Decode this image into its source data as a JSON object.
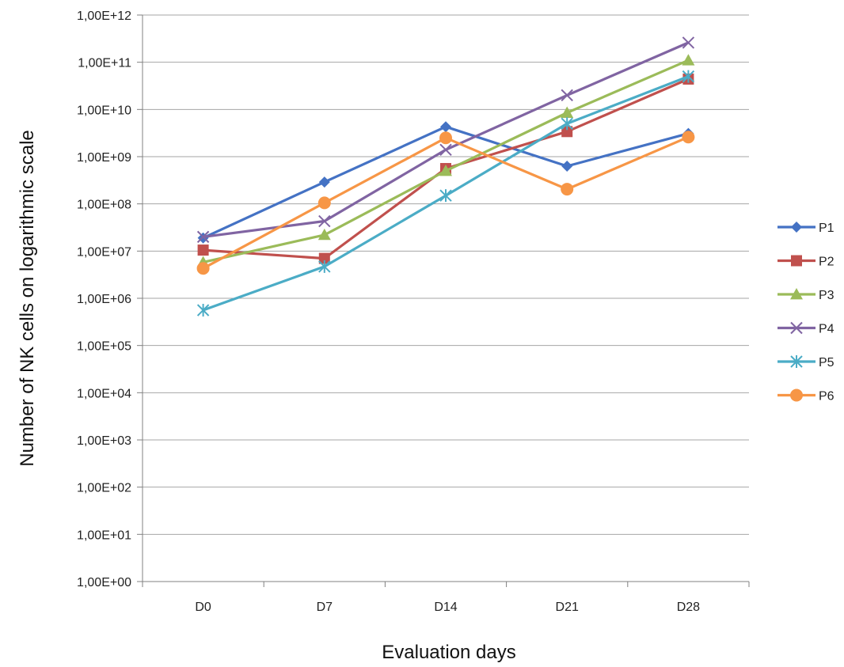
{
  "chart_data": {
    "type": "line",
    "title": "",
    "xlabel": "Evaluation days",
    "ylabel": "Number of NK cells on logarithmic scale",
    "y_scale": "log",
    "ylim": [
      1,
      1000000000000
    ],
    "grid": "horizontal",
    "legend_position": "right",
    "categories": [
      "D0",
      "D7",
      "D14",
      "D21",
      "D28"
    ],
    "y_tick_labels": [
      "1,00E+00",
      "1,00E+01",
      "1,00E+02",
      "1,00E+03",
      "1,00E+04",
      "1,00E+05",
      "1,00E+06",
      "1,00E+07",
      "1,00E+08",
      "1,00E+09",
      "1,00E+10",
      "1,00E+11",
      "1,00E+12"
    ],
    "series": [
      {
        "name": "P1",
        "color": "#4472C4",
        "marker": "diamond",
        "values": [
          19000000,
          290000000,
          4300000000,
          630000000,
          3100000000
        ]
      },
      {
        "name": "P2",
        "color": "#C0504D",
        "marker": "square",
        "values": [
          10500000,
          7000000,
          560000000,
          3400000000,
          44000000000
        ]
      },
      {
        "name": "P3",
        "color": "#9BBB59",
        "marker": "triangle",
        "values": [
          5800000,
          22000000,
          500000000,
          8500000000,
          110000000000
        ]
      },
      {
        "name": "P4",
        "color": "#8064A2",
        "marker": "x",
        "values": [
          20000000,
          43000000,
          1400000000,
          20000000000,
          260000000000
        ]
      },
      {
        "name": "P5",
        "color": "#4BACC6",
        "marker": "star",
        "values": [
          560000,
          4700000,
          150000000,
          5000000000,
          50000000000
        ]
      },
      {
        "name": "P6",
        "color": "#F79646",
        "marker": "circle",
        "values": [
          4300000,
          105000000,
          2500000000,
          205000000,
          2600000000
        ]
      }
    ]
  }
}
